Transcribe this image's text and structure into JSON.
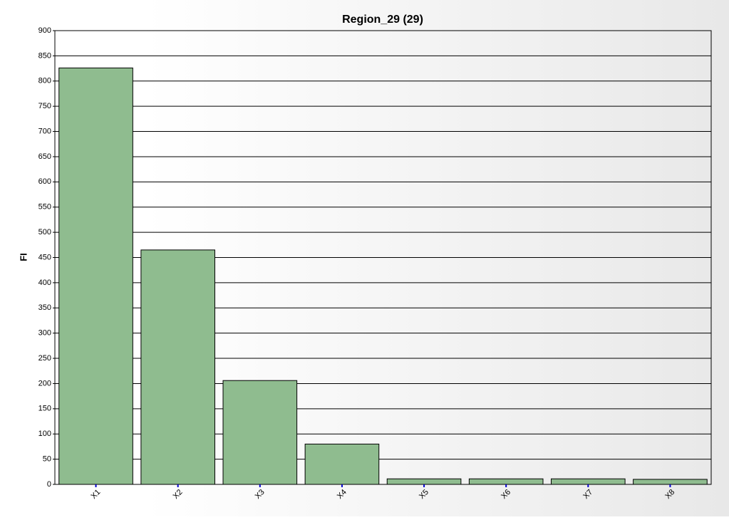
{
  "chart_data": {
    "type": "bar",
    "title": "Region_29 (29)",
    "y_label": "FI",
    "categories": [
      "X1",
      "X2",
      "X3",
      "X4",
      "X5",
      "X6",
      "X7",
      "X8"
    ],
    "values": [
      826,
      465,
      206,
      80,
      11,
      11,
      11,
      10
    ],
    "color": "#8fbc8f",
    "ylim": [
      0,
      900
    ],
    "yticks": [
      0,
      50,
      100,
      150,
      200,
      250,
      300,
      350,
      400,
      450,
      500,
      550,
      600,
      650,
      700,
      750,
      800,
      850,
      900
    ],
    "grid": true
  }
}
